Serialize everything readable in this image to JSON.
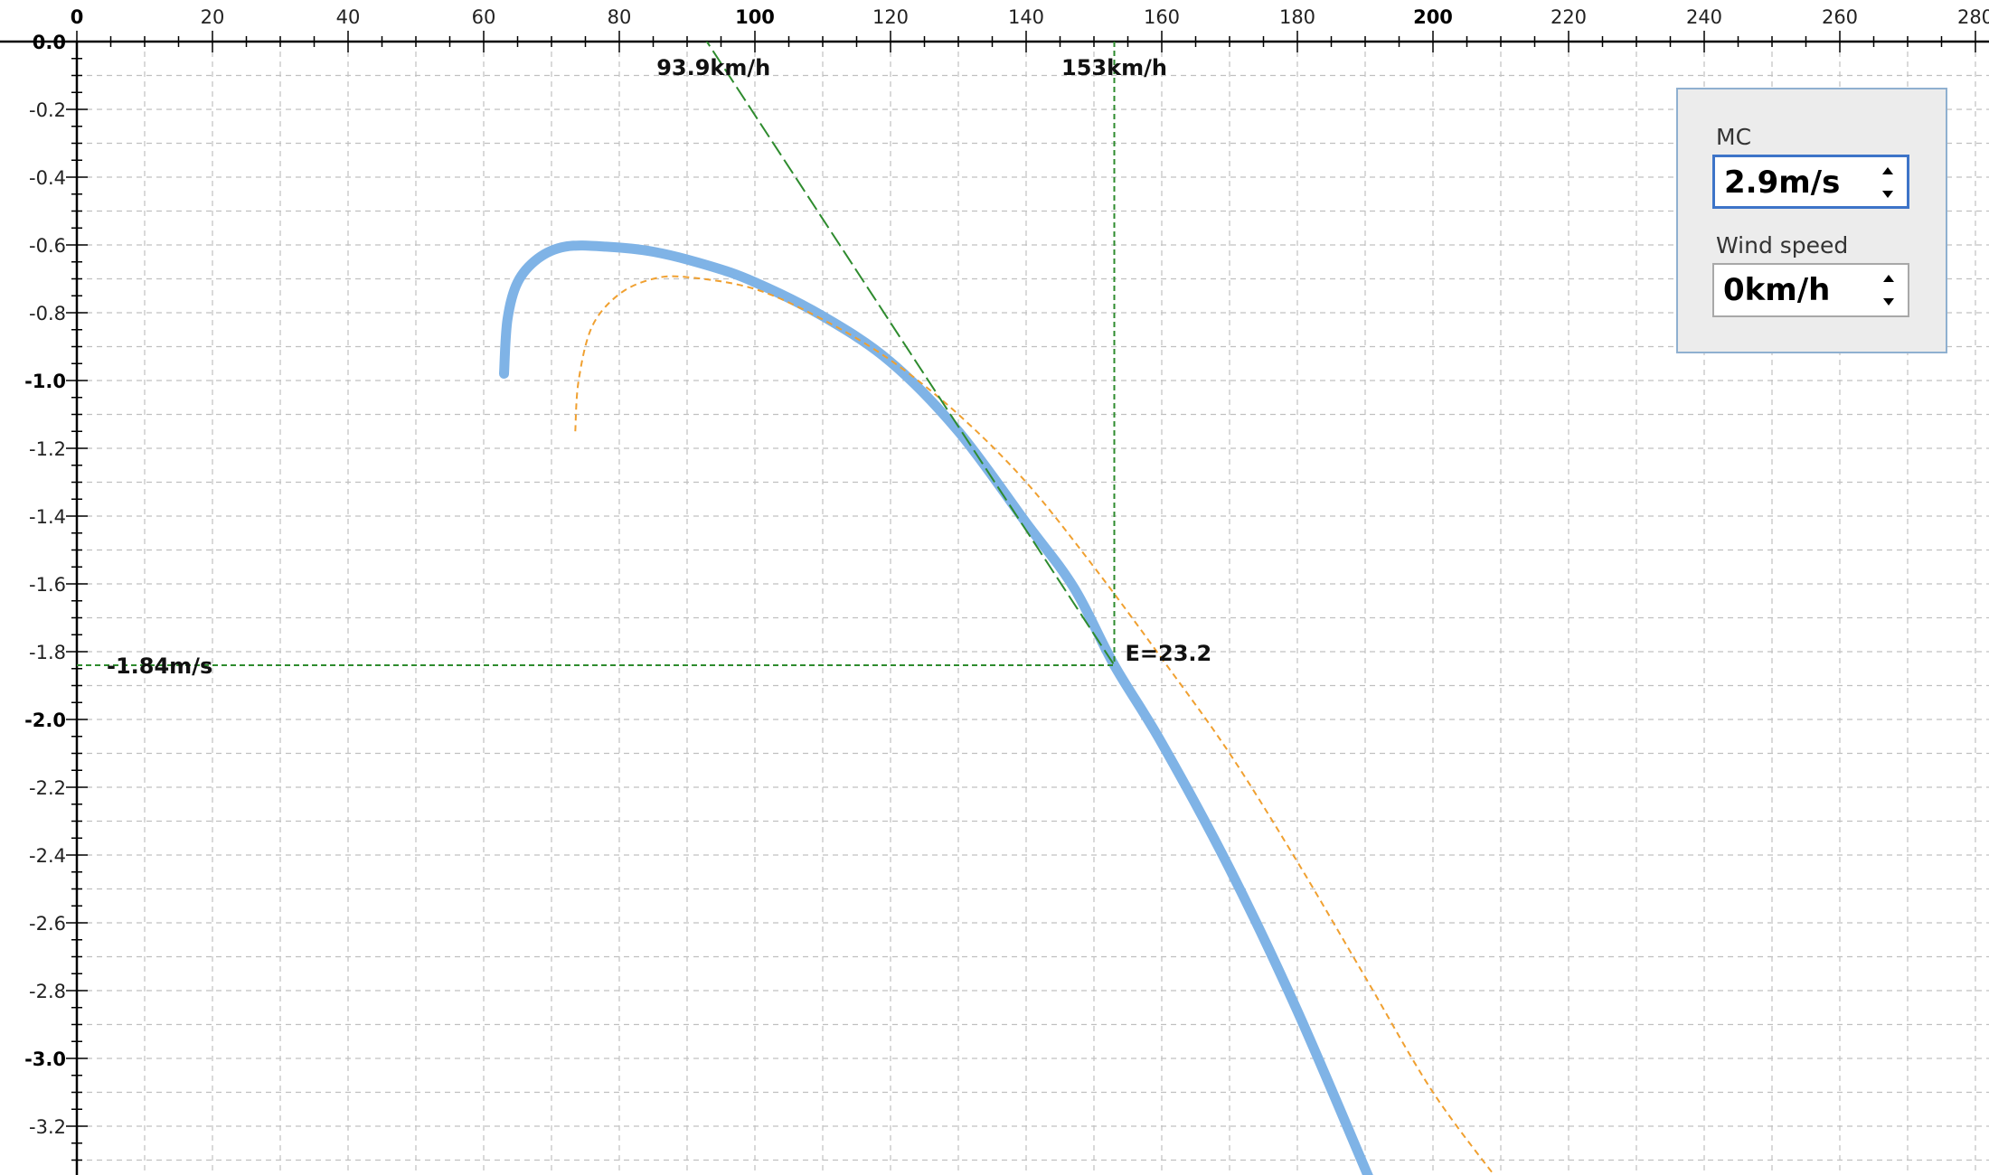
{
  "chart_data": {
    "type": "line",
    "x_ticks": [
      "0",
      "20",
      "40",
      "60",
      "80",
      "100",
      "120",
      "140",
      "160",
      "180",
      "200",
      "220",
      "240",
      "260",
      "280"
    ],
    "y_ticks": [
      "0.0",
      "-0.2",
      "-0.4",
      "-0.6",
      "-0.8",
      "-1.0",
      "-1.2",
      "-1.4",
      "-1.6",
      "-1.8",
      "-2.0",
      "-2.2",
      "-2.4",
      "-2.6",
      "-2.8",
      "-3.0",
      "-3.2"
    ],
    "xlim": [
      0,
      280
    ],
    "ylim": [
      -3.35,
      0
    ],
    "grid": true,
    "series": [
      {
        "color": "#7fb3e6",
        "style": "solid",
        "x": [
          63,
          63.5,
          65,
          68,
          72,
          78,
          85,
          93,
          100,
          110,
          120,
          130,
          140,
          147,
          153,
          160,
          170,
          180,
          190.5
        ],
        "y": [
          -0.98,
          -0.82,
          -0.71,
          -0.64,
          -0.605,
          -0.605,
          -0.62,
          -0.66,
          -0.71,
          -0.81,
          -0.945,
          -1.15,
          -1.42,
          -1.61,
          -1.84,
          -2.07,
          -2.44,
          -2.86,
          -3.35
        ]
      },
      {
        "color": "#f0a030",
        "style": "dashed",
        "x": [
          73.5,
          74,
          76,
          80,
          85,
          90,
          100,
          110,
          120,
          130,
          140,
          150,
          160,
          170,
          180,
          190,
          200,
          210
        ],
        "y": [
          -1.15,
          -1.0,
          -0.84,
          -0.745,
          -0.7,
          -0.695,
          -0.73,
          -0.82,
          -0.94,
          -1.1,
          -1.3,
          -1.55,
          -1.82,
          -2.1,
          -2.42,
          -2.76,
          -3.1,
          -3.37
        ]
      },
      {
        "color": "#2e8b2e",
        "style": "dashed",
        "x": [
          90.3,
          153
        ],
        "y": [
          0.08,
          -1.84
        ]
      }
    ],
    "annotations": {
      "mc_speed": "93.9km/h",
      "best_speed": "153km/h",
      "sink_rate": "-1.84m/s",
      "glide_ratio": "E=23.2"
    }
  },
  "controls": {
    "mc": {
      "label": "MC",
      "value": "2.9m/s"
    },
    "wind": {
      "label": "Wind speed",
      "value": "0km/h"
    }
  },
  "colors": {
    "grid": "#c0c0c0",
    "guide": "#2e8b2e",
    "polar": "#7fb3e6",
    "reference": "#f0a030",
    "panel_border": "#8fb0d0"
  }
}
